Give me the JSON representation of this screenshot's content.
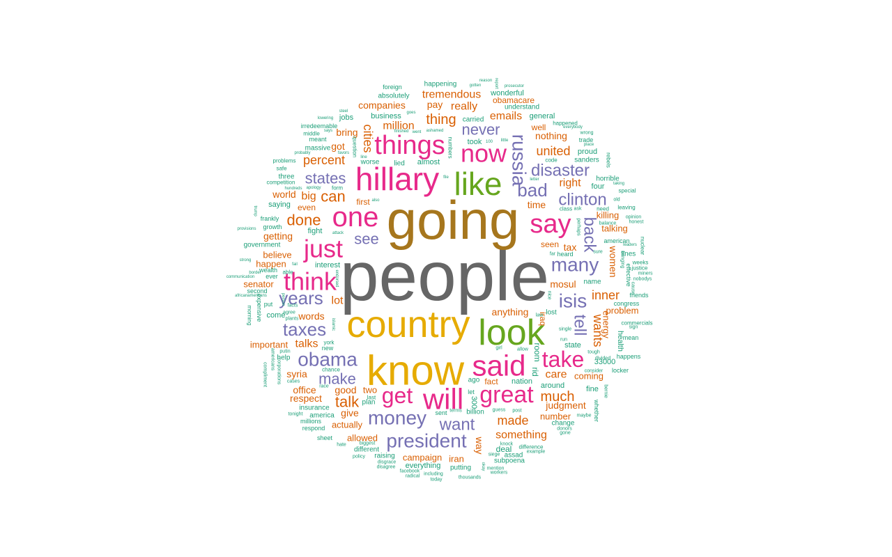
{
  "palette": {
    "teal": "#1b9e77",
    "orange": "#d95f02",
    "purple": "#7570b3",
    "magenta": "#e7298a",
    "green": "#66a61e",
    "gold": "#e6ab02",
    "brown": "#a6761d",
    "gray": "#666666"
  },
  "words": [
    {
      "text": "people",
      "c": "gray"
    },
    {
      "text": "going",
      "c": "brown"
    },
    {
      "text": "know",
      "c": "gold"
    },
    {
      "text": "country",
      "c": "gold"
    },
    {
      "text": "look",
      "c": "green"
    },
    {
      "text": "like",
      "c": "green"
    },
    {
      "text": "hillary",
      "c": "magenta"
    },
    {
      "text": "said",
      "c": "magenta"
    },
    {
      "text": "will",
      "c": "magenta"
    },
    {
      "text": "one",
      "c": "magenta"
    },
    {
      "text": "say",
      "c": "magenta"
    },
    {
      "text": "now",
      "c": "magenta"
    },
    {
      "text": "things",
      "c": "magenta"
    },
    {
      "text": "think",
      "c": "magenta"
    },
    {
      "text": "great",
      "c": "magenta"
    },
    {
      "text": "get",
      "c": "magenta"
    },
    {
      "text": "just",
      "c": "magenta"
    },
    {
      "text": "take",
      "c": "magenta"
    },
    {
      "text": "russia",
      "c": "purple"
    },
    {
      "text": "obama",
      "c": "purple"
    },
    {
      "text": "president",
      "c": "purple"
    },
    {
      "text": "money",
      "c": "purple"
    },
    {
      "text": "many",
      "c": "purple"
    },
    {
      "text": "taxes",
      "c": "purple"
    },
    {
      "text": "years",
      "c": "purple"
    },
    {
      "text": "back",
      "c": "purple"
    },
    {
      "text": "isis",
      "c": "purple"
    },
    {
      "text": "bad",
      "c": "purple"
    },
    {
      "text": "clinton",
      "c": "purple"
    },
    {
      "text": "disaster",
      "c": "purple"
    },
    {
      "text": "want",
      "c": "purple"
    },
    {
      "text": "make",
      "c": "purple"
    },
    {
      "text": "tell",
      "c": "purple"
    },
    {
      "text": "states",
      "c": "purple"
    },
    {
      "text": "never",
      "c": "purple"
    },
    {
      "text": "see",
      "c": "purple"
    },
    {
      "text": "can",
      "c": "orange"
    },
    {
      "text": "done",
      "c": "orange"
    },
    {
      "text": "talk",
      "c": "orange"
    },
    {
      "text": "much",
      "c": "orange"
    },
    {
      "text": "made",
      "c": "orange"
    },
    {
      "text": "united",
      "c": "orange"
    },
    {
      "text": "inner",
      "c": "orange"
    },
    {
      "text": "wants",
      "c": "orange"
    },
    {
      "text": "percent",
      "c": "orange"
    },
    {
      "text": "cities",
      "c": "orange"
    },
    {
      "text": "thing",
      "c": "orange"
    },
    {
      "text": "something",
      "c": "orange"
    },
    {
      "text": "emails",
      "c": "orange"
    },
    {
      "text": "tremendous",
      "c": "orange"
    },
    {
      "text": "million",
      "c": "orange"
    },
    {
      "text": "companies",
      "c": "orange"
    },
    {
      "text": "women",
      "c": "orange"
    },
    {
      "text": "care",
      "c": "orange"
    },
    {
      "text": "talks",
      "c": "orange"
    },
    {
      "text": "lot",
      "c": "orange"
    },
    {
      "text": "syria",
      "c": "orange"
    },
    {
      "text": "respect",
      "c": "orange"
    },
    {
      "text": "anything",
      "c": "orange"
    },
    {
      "text": "judgment",
      "c": "orange"
    },
    {
      "text": "mosul",
      "c": "orange"
    },
    {
      "text": "right",
      "c": "orange"
    },
    {
      "text": "time",
      "c": "orange"
    },
    {
      "text": "nothing",
      "c": "orange"
    },
    {
      "text": "really",
      "c": "orange"
    },
    {
      "text": "pay",
      "c": "orange"
    },
    {
      "text": "got",
      "c": "orange"
    },
    {
      "text": "bring",
      "c": "orange"
    },
    {
      "text": "big",
      "c": "orange"
    },
    {
      "text": "world",
      "c": "orange"
    },
    {
      "text": "even",
      "c": "orange"
    },
    {
      "text": "getting",
      "c": "orange"
    },
    {
      "text": "believe",
      "c": "orange"
    },
    {
      "text": "happen",
      "c": "orange"
    },
    {
      "text": "senator",
      "c": "orange"
    },
    {
      "text": "words",
      "c": "orange"
    },
    {
      "text": "important",
      "c": "orange"
    },
    {
      "text": "office",
      "c": "orange"
    },
    {
      "text": "good",
      "c": "orange"
    },
    {
      "text": "give",
      "c": "orange"
    },
    {
      "text": "actually",
      "c": "orange"
    },
    {
      "text": "allowed",
      "c": "orange"
    },
    {
      "text": "campaign",
      "c": "orange"
    },
    {
      "text": "iran",
      "c": "orange"
    },
    {
      "text": "way",
      "c": "orange"
    },
    {
      "text": "number",
      "c": "orange"
    },
    {
      "text": "coming",
      "c": "orange"
    },
    {
      "text": "problem",
      "c": "orange"
    },
    {
      "text": "energy",
      "c": "orange"
    },
    {
      "text": "talking",
      "c": "orange"
    },
    {
      "text": "killing",
      "c": "orange"
    },
    {
      "text": "tax",
      "c": "orange"
    },
    {
      "text": "seen",
      "c": "orange"
    },
    {
      "text": "iraq",
      "c": "orange"
    },
    {
      "text": "fact",
      "c": "orange"
    },
    {
      "text": "two",
      "c": "orange"
    },
    {
      "text": "first",
      "c": "orange"
    },
    {
      "text": "well",
      "c": "orange"
    },
    {
      "text": "obamacare",
      "c": "orange"
    },
    {
      "text": "deal",
      "c": "teal"
    },
    {
      "text": "room",
      "c": "teal"
    },
    {
      "text": "rid",
      "c": "teal"
    },
    {
      "text": "nation",
      "c": "teal"
    },
    {
      "text": "around",
      "c": "teal"
    },
    {
      "text": "state",
      "c": "teal"
    },
    {
      "text": "33000",
      "c": "teal"
    },
    {
      "text": "fine",
      "c": "teal"
    },
    {
      "text": "health",
      "c": "teal"
    },
    {
      "text": "friends",
      "c": "teal"
    },
    {
      "text": "congress",
      "c": "teal"
    },
    {
      "text": "name",
      "c": "teal"
    },
    {
      "text": "lost",
      "c": "teal"
    },
    {
      "text": "heard",
      "c": "teal"
    },
    {
      "text": "four",
      "c": "teal"
    },
    {
      "text": "horrible",
      "c": "teal"
    },
    {
      "text": "sanders",
      "c": "teal"
    },
    {
      "text": "proud",
      "c": "teal"
    },
    {
      "text": "trade",
      "c": "teal"
    },
    {
      "text": "general",
      "c": "teal"
    },
    {
      "text": "understand",
      "c": "teal"
    },
    {
      "text": "wonderful",
      "c": "teal"
    },
    {
      "text": "happening",
      "c": "teal"
    },
    {
      "text": "foreign",
      "c": "teal"
    },
    {
      "text": "absolutely",
      "c": "teal"
    },
    {
      "text": "business",
      "c": "teal"
    },
    {
      "text": "jobs",
      "c": "teal"
    },
    {
      "text": "massive",
      "c": "teal"
    },
    {
      "text": "worse",
      "c": "teal"
    },
    {
      "text": "lied",
      "c": "teal"
    },
    {
      "text": "almost",
      "c": "teal"
    },
    {
      "text": "took",
      "c": "teal"
    },
    {
      "text": "carried",
      "c": "teal"
    },
    {
      "text": "three",
      "c": "teal"
    },
    {
      "text": "saying",
      "c": "teal"
    },
    {
      "text": "frankly",
      "c": "teal"
    },
    {
      "text": "growth",
      "c": "teal"
    },
    {
      "text": "government",
      "c": "teal"
    },
    {
      "text": "fight",
      "c": "teal"
    },
    {
      "text": "interest",
      "c": "teal"
    },
    {
      "text": "ever",
      "c": "teal"
    },
    {
      "text": "put",
      "c": "teal"
    },
    {
      "text": "come",
      "c": "teal"
    },
    {
      "text": "help",
      "c": "teal"
    },
    {
      "text": "insurance",
      "c": "teal"
    },
    {
      "text": "america",
      "c": "teal"
    },
    {
      "text": "plan",
      "c": "teal"
    },
    {
      "text": "billion",
      "c": "teal"
    },
    {
      "text": "different",
      "c": "teal"
    },
    {
      "text": "everything",
      "c": "teal"
    },
    {
      "text": "putting",
      "c": "teal"
    },
    {
      "text": "raising",
      "c": "teal"
    },
    {
      "text": "subpoena",
      "c": "teal"
    },
    {
      "text": "assad",
      "c": "teal"
    },
    {
      "text": "change",
      "c": "teal"
    },
    {
      "text": "difference",
      "c": "teal"
    },
    {
      "text": "commercials",
      "c": "teal"
    },
    {
      "text": "mean",
      "c": "teal"
    },
    {
      "text": "happens",
      "c": "teal"
    },
    {
      "text": "locker",
      "c": "teal"
    },
    {
      "text": "whether",
      "c": "teal"
    },
    {
      "text": "weeks",
      "c": "teal"
    },
    {
      "text": "justice",
      "c": "teal"
    },
    {
      "text": "effective",
      "c": "teal"
    },
    {
      "text": "lines",
      "c": "teal"
    },
    {
      "text": "leaving",
      "c": "teal"
    },
    {
      "text": "special",
      "c": "teal"
    },
    {
      "text": "nuclear",
      "c": "teal"
    },
    {
      "text": "american",
      "c": "teal"
    },
    {
      "text": "rebels",
      "c": "teal"
    },
    {
      "text": "happened",
      "c": "teal"
    },
    {
      "text": "code",
      "c": "teal"
    },
    {
      "text": "class",
      "c": "teal"
    },
    {
      "text": "competition",
      "c": "teal"
    },
    {
      "text": "safe",
      "c": "teal"
    },
    {
      "text": "problems",
      "c": "teal"
    },
    {
      "text": "meant",
      "c": "teal"
    },
    {
      "text": "middle",
      "c": "teal"
    },
    {
      "text": "irredeemable",
      "c": "teal"
    },
    {
      "text": "expensive",
      "c": "teal"
    },
    {
      "text": "morning",
      "c": "teal"
    },
    {
      "text": "second",
      "c": "teal"
    },
    {
      "text": "wealth",
      "c": "teal"
    },
    {
      "text": "able",
      "c": "teal"
    },
    {
      "text": "sheet",
      "c": "teal"
    },
    {
      "text": "respond",
      "c": "teal"
    },
    {
      "text": "millions",
      "c": "teal"
    },
    {
      "text": "sent",
      "c": "teal"
    },
    {
      "text": "ago",
      "c": "teal"
    },
    {
      "text": "let",
      "c": "teal"
    },
    {
      "text": "last",
      "c": "teal"
    },
    {
      "text": "300",
      "c": "teal"
    },
    {
      "text": "numbers",
      "c": "teal"
    },
    {
      "text": "question",
      "c": "teal"
    },
    {
      "text": "form",
      "c": "teal"
    },
    {
      "text": "new",
      "c": "teal"
    },
    {
      "text": "york",
      "c": "teal"
    },
    {
      "text": "chance",
      "c": "teal"
    },
    {
      "text": "race",
      "c": "teal"
    },
    {
      "text": "cases",
      "c": "teal"
    },
    {
      "text": "plants",
      "c": "teal"
    },
    {
      "text": "agree",
      "c": "teal"
    },
    {
      "text": "facts",
      "c": "teal"
    },
    {
      "text": "putin",
      "c": "teal"
    },
    {
      "text": "corporations",
      "c": "teal"
    },
    {
      "text": "americans",
      "c": "teal"
    },
    {
      "text": "compliment",
      "c": "teal"
    },
    {
      "text": "tonight",
      "c": "teal"
    },
    {
      "text": "hate",
      "c": "teal"
    },
    {
      "text": "policy",
      "c": "teal"
    },
    {
      "text": "biggest",
      "c": "teal"
    },
    {
      "text": "disgrace",
      "c": "teal"
    },
    {
      "text": "disagree",
      "c": "teal"
    },
    {
      "text": "facebook",
      "c": "teal"
    },
    {
      "text": "radical",
      "c": "teal"
    },
    {
      "text": "including",
      "c": "teal"
    },
    {
      "text": "today",
      "c": "teal"
    },
    {
      "text": "thousands",
      "c": "teal"
    },
    {
      "text": "workers",
      "c": "teal"
    },
    {
      "text": "mention",
      "c": "teal"
    },
    {
      "text": "okay",
      "c": "teal"
    },
    {
      "text": "siege",
      "c": "teal"
    },
    {
      "text": "knock",
      "c": "teal"
    },
    {
      "text": "guess",
      "c": "teal"
    },
    {
      "text": "post",
      "c": "teal"
    },
    {
      "text": "terms",
      "c": "teal"
    },
    {
      "text": "donors",
      "c": "teal"
    },
    {
      "text": "gone",
      "c": "teal"
    },
    {
      "text": "maybe",
      "c": "teal"
    },
    {
      "text": "example",
      "c": "teal"
    },
    {
      "text": "bernie",
      "c": "teal"
    },
    {
      "text": "consider",
      "c": "teal"
    },
    {
      "text": "divided",
      "c": "teal"
    },
    {
      "text": "tough",
      "c": "teal"
    },
    {
      "text": "run",
      "c": "teal"
    },
    {
      "text": "single",
      "c": "teal"
    },
    {
      "text": "allow",
      "c": "teal"
    },
    {
      "text": "girl",
      "c": "teal"
    },
    {
      "text": "law",
      "c": "teal"
    },
    {
      "text": "nice",
      "c": "teal"
    },
    {
      "text": "far",
      "c": "teal"
    },
    {
      "text": "sure",
      "c": "teal"
    },
    {
      "text": "bringing",
      "c": "teal"
    },
    {
      "text": "miners",
      "c": "teal"
    },
    {
      "text": "nobodys",
      "c": "teal"
    },
    {
      "text": "cause",
      "c": "teal"
    },
    {
      "text": "leaders",
      "c": "teal"
    },
    {
      "text": "honest",
      "c": "teal"
    },
    {
      "text": "opinion",
      "c": "teal"
    },
    {
      "text": "balance",
      "c": "teal"
    },
    {
      "text": "perhaps",
      "c": "teal"
    },
    {
      "text": "old",
      "c": "teal"
    },
    {
      "text": "taking",
      "c": "teal"
    },
    {
      "text": "need",
      "c": "teal"
    },
    {
      "text": "ask",
      "c": "teal"
    },
    {
      "text": "sign",
      "c": "teal"
    },
    {
      "text": "letter",
      "c": "teal"
    },
    {
      "text": "place",
      "c": "teal"
    },
    {
      "text": "wrong",
      "c": "teal"
    },
    {
      "text": "everybody",
      "c": "teal"
    },
    {
      "text": "prosecutor",
      "c": "teal"
    },
    {
      "text": "report",
      "c": "teal"
    },
    {
      "text": "reason",
      "c": "teal"
    },
    {
      "text": "gotten",
      "c": "teal"
    },
    {
      "text": "little",
      "c": "teal"
    },
    {
      "text": "100",
      "c": "teal"
    },
    {
      "text": "ashamed",
      "c": "teal"
    },
    {
      "text": "went",
      "c": "teal"
    },
    {
      "text": "finished",
      "c": "teal"
    },
    {
      "text": "goes",
      "c": "teal"
    },
    {
      "text": "steel",
      "c": "teal"
    },
    {
      "text": "lowering",
      "c": "teal"
    },
    {
      "text": "says",
      "c": "teal"
    },
    {
      "text": "favors",
      "c": "teal"
    },
    {
      "text": "line",
      "c": "teal"
    },
    {
      "text": "probably",
      "c": "teal"
    },
    {
      "text": "apology",
      "c": "teal"
    },
    {
      "text": "hundreds",
      "c": "teal"
    },
    {
      "text": "also",
      "c": "teal"
    },
    {
      "text": "trump",
      "c": "teal"
    },
    {
      "text": "provisions",
      "c": "teal"
    },
    {
      "text": "attack",
      "c": "teal"
    },
    {
      "text": "strong",
      "c": "teal"
    },
    {
      "text": "communication",
      "c": "teal"
    },
    {
      "text": "border",
      "c": "teal"
    },
    {
      "text": "fail",
      "c": "teal"
    },
    {
      "text": "africanamericans",
      "c": "teal"
    },
    {
      "text": "person",
      "c": "teal"
    },
    {
      "text": "islamic",
      "c": "teal"
    },
    {
      "text": "endorsed",
      "c": "teal"
    },
    {
      "text": "file",
      "c": "teal"
    }
  ]
}
